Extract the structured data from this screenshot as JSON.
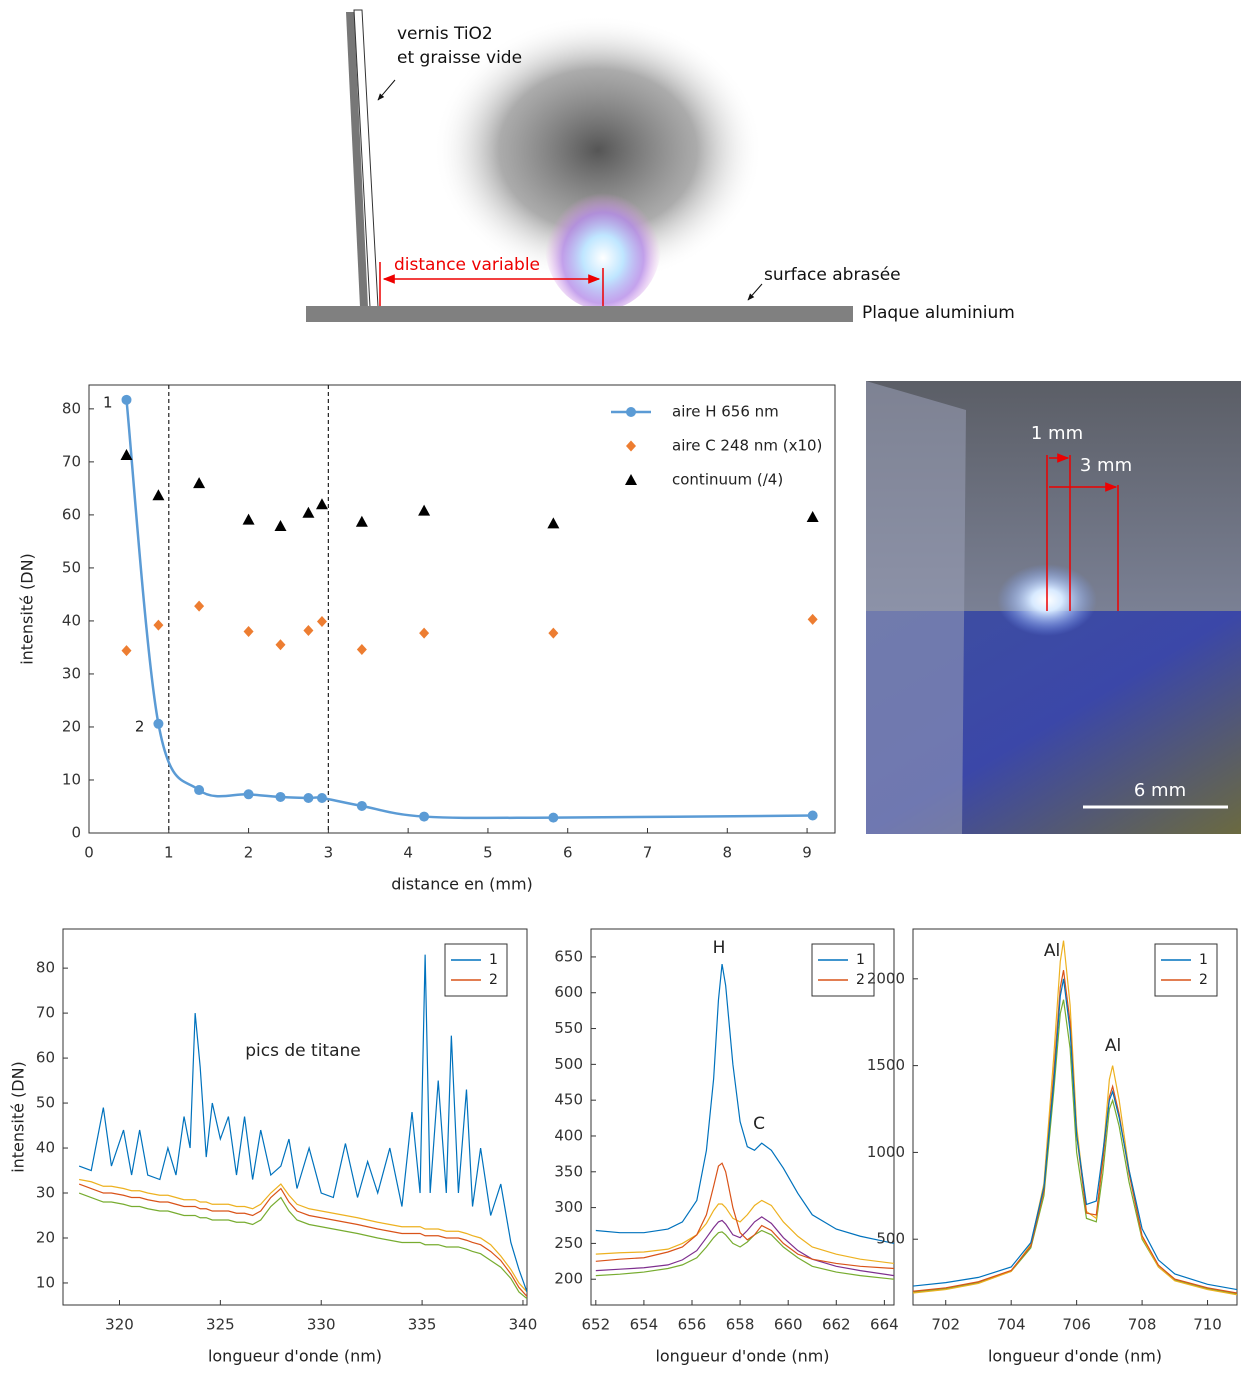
{
  "diagram": {
    "varnish": [
      "vernis TiO2",
      "et graisse vide"
    ],
    "distance": "distance variable",
    "surface": "surface abrasée",
    "plate": "Plaque aluminium"
  },
  "photo": {
    "labels": [
      "1 mm",
      "3 mm",
      "6 mm"
    ]
  },
  "chart_data": [
    {
      "type": "line",
      "xlabel": "distance en (mm)",
      "ylabel": "intensité (DN)",
      "x": [
        0.47,
        0.87,
        1.38,
        2.0,
        2.4,
        2.75,
        2.92,
        3.42,
        4.2,
        5.82,
        9.07
      ],
      "xlim": [
        0,
        9.35
      ],
      "ylim": [
        0,
        84.5
      ],
      "xticks": [
        0,
        1,
        2,
        3,
        4,
        5,
        6,
        7,
        8,
        9
      ],
      "yticks": [
        0,
        10,
        20,
        30,
        40,
        50,
        60,
        70,
        80
      ],
      "vlines": [
        1,
        3
      ],
      "smooth": true,
      "legend": "upper right",
      "legend_box": false,
      "series": [
        {
          "name": "aire H 656 nm",
          "color": "#5b9bd5",
          "marker": "circle",
          "line": true,
          "values": [
            81.7,
            20.6,
            8.1,
            7.3,
            6.8,
            6.6,
            6.6,
            5.1,
            3.1,
            2.9,
            3.3
          ],
          "point_labels": [
            "1",
            "2",
            null,
            null,
            null,
            null,
            null,
            null,
            null,
            null,
            null
          ]
        },
        {
          "name": "aire C 248 nm (x10)",
          "color": "#ed7d31",
          "marker": "diamond",
          "line": false,
          "values": [
            34.4,
            39.2,
            42.8,
            38.0,
            35.5,
            38.2,
            39.9,
            34.6,
            37.7,
            37.7,
            40.3
          ]
        },
        {
          "name": "continuum (/4)",
          "color": "#000000",
          "marker": "triangle",
          "line": false,
          "values": [
            71.3,
            63.7,
            66.0,
            59.1,
            57.9,
            60.4,
            62.0,
            58.7,
            60.8,
            58.4,
            59.6
          ]
        }
      ]
    },
    {
      "type": "line",
      "xlabel": "longueur d'onde (nm)",
      "ylabel": "intensité (DN)",
      "x": [
        318,
        318.6,
        319.2,
        319.6,
        320.2,
        320.6,
        321.0,
        321.4,
        322.0,
        322.4,
        322.8,
        323.2,
        323.5,
        323.75,
        324.0,
        324.3,
        324.6,
        325.0,
        325.4,
        325.8,
        326.2,
        326.6,
        327.0,
        327.5,
        328.0,
        328.4,
        328.8,
        329.4,
        330.0,
        330.6,
        331.2,
        331.8,
        332.3,
        332.8,
        333.4,
        334.0,
        334.5,
        334.9,
        335.15,
        335.4,
        335.8,
        336.2,
        336.45,
        336.8,
        337.2,
        337.5,
        337.9,
        338.4,
        338.9,
        339.4,
        339.8,
        340.2
      ],
      "xlim": [
        317.2,
        340.2
      ],
      "ylim": [
        5.1,
        88.7
      ],
      "xticks": [
        320,
        325,
        330,
        335,
        340
      ],
      "yticks": [
        10,
        20,
        30,
        40,
        50,
        60,
        70,
        80
      ],
      "legend": "upper right",
      "legend_box": true,
      "annotations": [
        {
          "text": "pics de titane"
        }
      ],
      "series": [
        {
          "color": "#edb120",
          "values": [
            33,
            32.5,
            31.5,
            31.5,
            31,
            30.5,
            30.5,
            30,
            29.5,
            29.5,
            29,
            28.5,
            28.5,
            28.5,
            28,
            28,
            27.5,
            27.5,
            27.5,
            27,
            27,
            26.5,
            27.5,
            30,
            32,
            29.5,
            27.5,
            26.5,
            26,
            25.5,
            25,
            24.5,
            24,
            23.5,
            23,
            22.5,
            22.5,
            22.5,
            22,
            22,
            22,
            21.5,
            21.5,
            21.5,
            21,
            20.5,
            20,
            18.5,
            16,
            13,
            10,
            8
          ]
        },
        {
          "color": "#77ac30",
          "values": [
            30,
            29,
            28,
            28,
            27.5,
            27,
            27,
            26.5,
            26,
            26,
            25.5,
            25,
            25,
            25,
            24.5,
            24.5,
            24,
            24,
            24,
            23.5,
            23.5,
            23,
            24,
            27,
            29,
            26,
            24,
            23,
            22.5,
            22,
            21.5,
            21,
            20.5,
            20,
            19.5,
            19,
            19,
            19,
            18.5,
            18.5,
            18.5,
            18,
            18,
            18,
            17.5,
            17,
            16.5,
            15,
            13.5,
            11,
            8,
            6.5
          ]
        },
        {
          "name": "2",
          "color": "#d95319",
          "values": [
            32,
            31,
            30,
            30,
            29.5,
            29,
            29,
            28.5,
            28,
            28,
            27.5,
            27,
            27,
            27,
            26.5,
            26.5,
            26,
            26,
            26,
            25.5,
            25.5,
            25,
            26,
            29,
            31,
            28,
            26,
            25,
            24.5,
            24,
            23.5,
            23,
            22.5,
            22,
            21.5,
            21,
            21,
            21,
            20.5,
            20.5,
            20.5,
            20,
            20,
            20,
            19.5,
            19,
            18.5,
            17,
            15,
            12,
            9,
            7
          ]
        },
        {
          "name": "1",
          "color": "#0072bd",
          "values": [
            36,
            35,
            49,
            36,
            44,
            34,
            44,
            34,
            33,
            40,
            34,
            47,
            40,
            70,
            58,
            38,
            50,
            42,
            47,
            34,
            47,
            33,
            44,
            34,
            36,
            42,
            31,
            40,
            30,
            29,
            41,
            29,
            37,
            30,
            40,
            27,
            48,
            30,
            83,
            30,
            55,
            30,
            65,
            30,
            53,
            27,
            40,
            25,
            32,
            19,
            13,
            8
          ]
        }
      ]
    },
    {
      "type": "line",
      "xlabel": "longueur d'onde (nm)",
      "x": [
        652,
        653,
        654,
        655,
        655.6,
        656.2,
        656.6,
        656.9,
        657.1,
        657.25,
        657.4,
        657.7,
        658.0,
        658.3,
        658.6,
        658.9,
        659.3,
        659.8,
        660.4,
        661,
        662,
        663,
        664.4
      ],
      "xlim": [
        651.8,
        664.4
      ],
      "ylim": [
        164,
        689
      ],
      "xticks": [
        652,
        654,
        656,
        658,
        660,
        662,
        664
      ],
      "yticks": [
        200,
        250,
        300,
        350,
        400,
        450,
        500,
        550,
        600,
        650
      ],
      "legend": "upper right",
      "legend_box": true,
      "annotations": [
        {
          "text": "H"
        },
        {
          "text": "C"
        }
      ],
      "series": [
        {
          "color": "#77ac30",
          "values": [
            205,
            207,
            210,
            215,
            220,
            230,
            245,
            258,
            265,
            266,
            262,
            250,
            245,
            252,
            262,
            268,
            262,
            245,
            230,
            218,
            210,
            205,
            200
          ]
        },
        {
          "color": "#7e2f8e",
          "values": [
            212,
            214,
            216,
            220,
            227,
            240,
            258,
            272,
            280,
            282,
            277,
            262,
            258,
            268,
            280,
            287,
            278,
            258,
            240,
            228,
            218,
            212,
            205
          ]
        },
        {
          "color": "#edb120",
          "values": [
            235,
            237,
            238,
            242,
            250,
            262,
            278,
            296,
            305,
            305,
            300,
            285,
            280,
            290,
            303,
            310,
            303,
            280,
            260,
            245,
            235,
            228,
            222
          ]
        },
        {
          "name": "2",
          "color": "#d95319",
          "values": [
            225,
            228,
            230,
            238,
            245,
            262,
            290,
            330,
            358,
            362,
            350,
            300,
            265,
            255,
            262,
            275,
            268,
            250,
            235,
            228,
            222,
            218,
            215
          ]
        },
        {
          "name": "1",
          "color": "#0072bd",
          "values": [
            268,
            265,
            265,
            270,
            280,
            310,
            380,
            480,
            590,
            640,
            610,
            500,
            420,
            385,
            380,
            390,
            380,
            355,
            320,
            290,
            270,
            260,
            250
          ]
        }
      ]
    },
    {
      "type": "line",
      "xlabel": "longueur d'onde (nm)",
      "x": [
        701,
        702,
        703,
        704,
        704.6,
        705,
        705.3,
        705.5,
        705.6,
        705.8,
        706.0,
        706.3,
        706.6,
        706.8,
        707.0,
        707.1,
        707.3,
        707.6,
        708,
        708.5,
        709,
        710,
        710.9
      ],
      "xlim": [
        701,
        710.9
      ],
      "ylim": [
        121,
        2287
      ],
      "xticks": [
        702,
        704,
        706,
        708,
        710
      ],
      "yticks": [
        500,
        1000,
        1500,
        2000
      ],
      "legend": "upper right",
      "legend_box": true,
      "annotations": [
        {
          "text": "Al"
        },
        {
          "text": "Al"
        }
      ],
      "series": [
        {
          "color": "#77ac30",
          "values": [
            195,
            215,
            250,
            315,
            450,
            750,
            1350,
            1800,
            1880,
            1600,
            1000,
            620,
            600,
            880,
            1250,
            1300,
            1150,
            830,
            500,
            340,
            265,
            215,
            185
          ]
        },
        {
          "color": "#edb120",
          "values": [
            190,
            210,
            245,
            315,
            470,
            820,
            1550,
            2100,
            2220,
            1850,
            1150,
            660,
            620,
            980,
            1420,
            1500,
            1300,
            900,
            510,
            340,
            260,
            210,
            180
          ]
        },
        {
          "name": "2",
          "color": "#d95319",
          "values": [
            200,
            220,
            255,
            320,
            460,
            780,
            1450,
            1950,
            2050,
            1750,
            1100,
            650,
            640,
            950,
            1320,
            1380,
            1220,
            880,
            520,
            350,
            270,
            220,
            190
          ]
        },
        {
          "name": "1",
          "color": "#0072bd",
          "values": [
            230,
            250,
            280,
            340,
            480,
            800,
            1400,
            1900,
            2000,
            1700,
            1100,
            700,
            720,
            1000,
            1300,
            1350,
            1200,
            900,
            560,
            380,
            300,
            240,
            210
          ]
        }
      ]
    }
  ]
}
